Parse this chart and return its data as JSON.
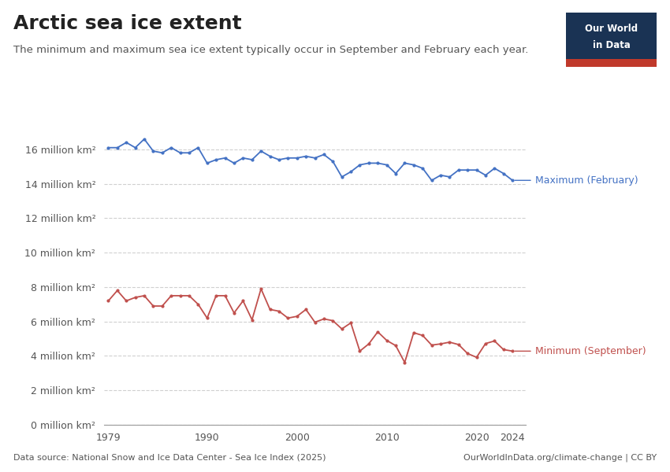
{
  "title": "Arctic sea ice extent",
  "subtitle": "The minimum and maximum sea ice extent typically occur in September and February each year.",
  "source_left": "Data source: National Snow and Ice Data Center - Sea Ice Index (2025)",
  "source_right": "OurWorldInData.org/climate-change | CC BY",
  "max_label": "Maximum (February)",
  "min_label": "Minimum (September)",
  "max_color": "#4472C4",
  "min_color": "#C0504D",
  "background_color": "#ffffff",
  "years": [
    1979,
    1980,
    1981,
    1982,
    1983,
    1984,
    1985,
    1986,
    1987,
    1988,
    1989,
    1990,
    1991,
    1992,
    1993,
    1994,
    1995,
    1996,
    1997,
    1998,
    1999,
    2000,
    2001,
    2002,
    2003,
    2004,
    2005,
    2006,
    2007,
    2008,
    2009,
    2010,
    2011,
    2012,
    2013,
    2014,
    2015,
    2016,
    2017,
    2018,
    2019,
    2020,
    2021,
    2022,
    2023,
    2024
  ],
  "february_max": [
    16.1,
    16.1,
    16.4,
    16.1,
    16.6,
    15.9,
    15.8,
    16.1,
    15.8,
    15.8,
    16.1,
    15.2,
    15.4,
    15.5,
    15.2,
    15.5,
    15.4,
    15.9,
    15.6,
    15.4,
    15.5,
    15.5,
    15.6,
    15.5,
    15.7,
    15.3,
    14.4,
    14.7,
    15.1,
    15.2,
    15.2,
    15.1,
    14.6,
    15.2,
    15.1,
    14.9,
    14.2,
    14.5,
    14.4,
    14.8,
    14.8,
    14.8,
    14.5,
    14.9,
    14.6,
    14.2
  ],
  "september_min": [
    7.2,
    7.8,
    7.2,
    7.4,
    7.5,
    6.9,
    6.9,
    7.5,
    7.5,
    7.5,
    7.0,
    6.2,
    7.5,
    7.5,
    6.5,
    7.2,
    6.1,
    7.9,
    6.7,
    6.6,
    6.2,
    6.3,
    6.7,
    5.96,
    6.15,
    6.05,
    5.57,
    5.92,
    4.28,
    4.7,
    5.4,
    4.9,
    4.6,
    3.62,
    5.35,
    5.19,
    4.63,
    4.7,
    4.8,
    4.66,
    4.14,
    3.92,
    4.72,
    4.87,
    4.37,
    4.28
  ],
  "xlim": [
    1978.5,
    2025.5
  ],
  "ylim": [
    0,
    17
  ],
  "yticks": [
    0,
    2,
    4,
    6,
    8,
    10,
    12,
    14,
    16
  ],
  "xticks": [
    1979,
    1990,
    2000,
    2010,
    2020,
    2024
  ],
  "grid_color": "#d0d0d0",
  "tick_color": "#555555",
  "font_color": "#222222",
  "logo_bg": "#1a3354",
  "logo_red": "#c0392b",
  "title_fontsize": 18,
  "subtitle_fontsize": 9.5,
  "tick_fontsize": 9,
  "annotation_fontsize": 9,
  "source_fontsize": 8
}
